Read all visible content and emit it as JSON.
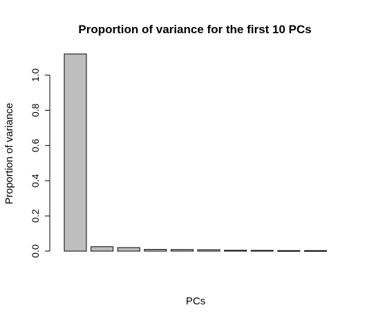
{
  "chart_data": {
    "type": "bar",
    "title": "Proportion of variance for the first 10 PCs",
    "xlabel": "PCs",
    "ylabel": "Proportion of variance",
    "categories": [
      "",
      "",
      "",
      "",
      "",
      "",
      "",
      "",
      "",
      ""
    ],
    "values": [
      1.12,
      0.025,
      0.02,
      0.01,
      0.009,
      0.008,
      0.005,
      0.004,
      0.003,
      0.003
    ],
    "ylim": [
      0,
      1.12
    ],
    "yticks": [
      0,
      0.2,
      0.4,
      0.6,
      0.8,
      1.0
    ],
    "ytick_labels": [
      "0.0",
      "0.2",
      "0.4",
      "0.6",
      "0.8",
      "1.0"
    ],
    "bar_color": "#bebebe",
    "grid": false,
    "legend": "none"
  }
}
